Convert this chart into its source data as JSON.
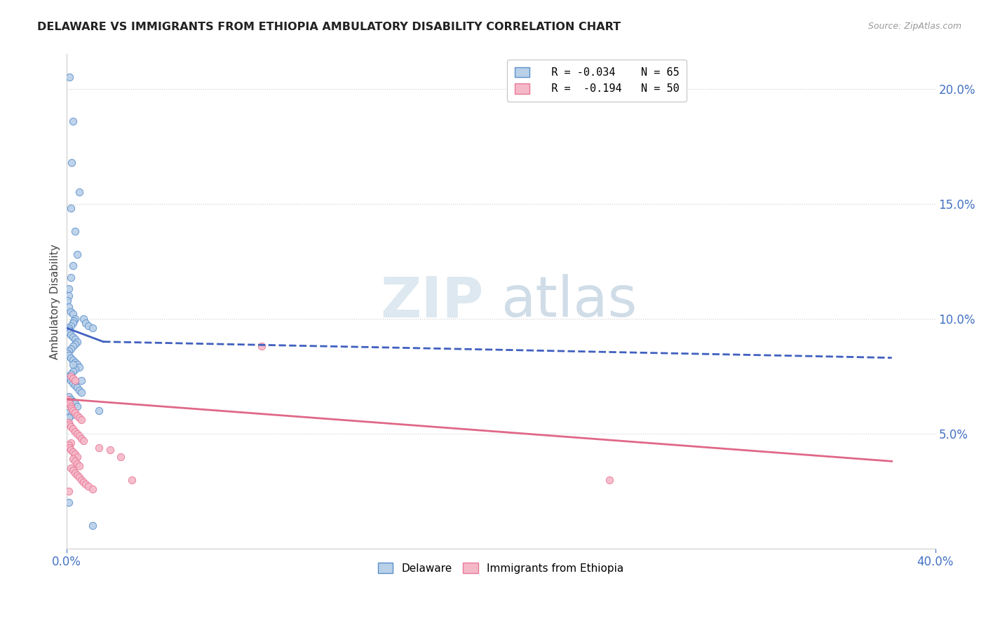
{
  "title": "DELAWARE VS IMMIGRANTS FROM ETHIOPIA AMBULATORY DISABILITY CORRELATION CHART",
  "source": "Source: ZipAtlas.com",
  "ylabel": "Ambulatory Disability",
  "x_min": 0.0,
  "x_max": 0.4,
  "y_min": 0.0,
  "y_max": 0.215,
  "y_ticks": [
    0.05,
    0.1,
    0.15,
    0.2
  ],
  "y_tick_labels": [
    "5.0%",
    "10.0%",
    "15.0%",
    "20.0%"
  ],
  "x_ticks": [
    0.0,
    0.4
  ],
  "x_tick_labels": [
    "0.0%",
    "40.0%"
  ],
  "background_color": "#ffffff",
  "watermark_zip": "ZIP",
  "watermark_atlas": "atlas",
  "legend_r_delaware": "R = -0.034",
  "legend_n_delaware": "N = 65",
  "legend_r_ethiopia": "R =  -0.194",
  "legend_n_ethiopia": "N = 50",
  "delaware_fill_color": "#b8d0e8",
  "ethiopia_fill_color": "#f5b8c8",
  "delaware_edge_color": "#5b8fcc",
  "ethiopia_edge_color": "#e87898",
  "delaware_line_color": "#4060c0",
  "ethiopia_line_color": "#e06888",
  "del_scatter_x": [
    0.0015,
    0.003,
    0.0025,
    0.006,
    0.002,
    0.004,
    0.005,
    0.003,
    0.002,
    0.001,
    0.001,
    0.0005,
    0.001,
    0.002,
    0.003,
    0.004,
    0.0035,
    0.003,
    0.002,
    0.001,
    0.001,
    0.0015,
    0.002,
    0.003,
    0.004,
    0.005,
    0.004,
    0.003,
    0.002,
    0.001,
    0.0005,
    0.001,
    0.002,
    0.003,
    0.004,
    0.005,
    0.006,
    0.004,
    0.003,
    0.002,
    0.001,
    0.0015,
    0.002,
    0.003,
    0.004,
    0.005,
    0.006,
    0.007,
    0.008,
    0.009,
    0.01,
    0.012,
    0.001,
    0.002,
    0.003,
    0.004,
    0.005,
    0.007,
    0.003,
    0.015,
    0.001,
    0.002,
    0.001,
    0.001,
    0.012
  ],
  "del_scatter_y": [
    0.205,
    0.186,
    0.168,
    0.155,
    0.148,
    0.138,
    0.128,
    0.123,
    0.118,
    0.113,
    0.11,
    0.108,
    0.105,
    0.103,
    0.102,
    0.1,
    0.099,
    0.098,
    0.097,
    0.096,
    0.095,
    0.094,
    0.093,
    0.092,
    0.091,
    0.09,
    0.089,
    0.088,
    0.087,
    0.086,
    0.085,
    0.084,
    0.083,
    0.082,
    0.081,
    0.08,
    0.079,
    0.078,
    0.077,
    0.076,
    0.075,
    0.074,
    0.073,
    0.072,
    0.071,
    0.07,
    0.069,
    0.068,
    0.1,
    0.098,
    0.097,
    0.096,
    0.066,
    0.065,
    0.064,
    0.063,
    0.062,
    0.073,
    0.08,
    0.06,
    0.059,
    0.058,
    0.057,
    0.02,
    0.01
  ],
  "eth_scatter_x": [
    0.0005,
    0.001,
    0.0015,
    0.002,
    0.0025,
    0.003,
    0.004,
    0.005,
    0.006,
    0.007,
    0.001,
    0.0015,
    0.002,
    0.003,
    0.004,
    0.005,
    0.006,
    0.007,
    0.008,
    0.002,
    0.001,
    0.0015,
    0.002,
    0.003,
    0.004,
    0.005,
    0.003,
    0.004,
    0.005,
    0.006,
    0.002,
    0.003,
    0.004,
    0.005,
    0.006,
    0.007,
    0.008,
    0.009,
    0.01,
    0.012,
    0.015,
    0.02,
    0.025,
    0.03,
    0.001,
    0.002,
    0.003,
    0.004,
    0.25,
    0.09
  ],
  "eth_scatter_y": [
    0.065,
    0.064,
    0.063,
    0.062,
    0.061,
    0.06,
    0.059,
    0.058,
    0.057,
    0.056,
    0.055,
    0.054,
    0.053,
    0.052,
    0.051,
    0.05,
    0.049,
    0.048,
    0.047,
    0.046,
    0.045,
    0.044,
    0.043,
    0.042,
    0.041,
    0.04,
    0.039,
    0.038,
    0.037,
    0.036,
    0.035,
    0.034,
    0.033,
    0.032,
    0.031,
    0.03,
    0.029,
    0.028,
    0.027,
    0.026,
    0.044,
    0.043,
    0.04,
    0.03,
    0.025,
    0.075,
    0.074,
    0.073,
    0.03,
    0.088
  ],
  "del_line_x1": 0.0,
  "del_line_x2": 0.017,
  "del_line_x3": 0.38,
  "del_line_y1": 0.096,
  "del_line_y2": 0.09,
  "del_line_y3": 0.083,
  "eth_line_x1": 0.0,
  "eth_line_x2": 0.38,
  "eth_line_y1": 0.065,
  "eth_line_y2": 0.038
}
